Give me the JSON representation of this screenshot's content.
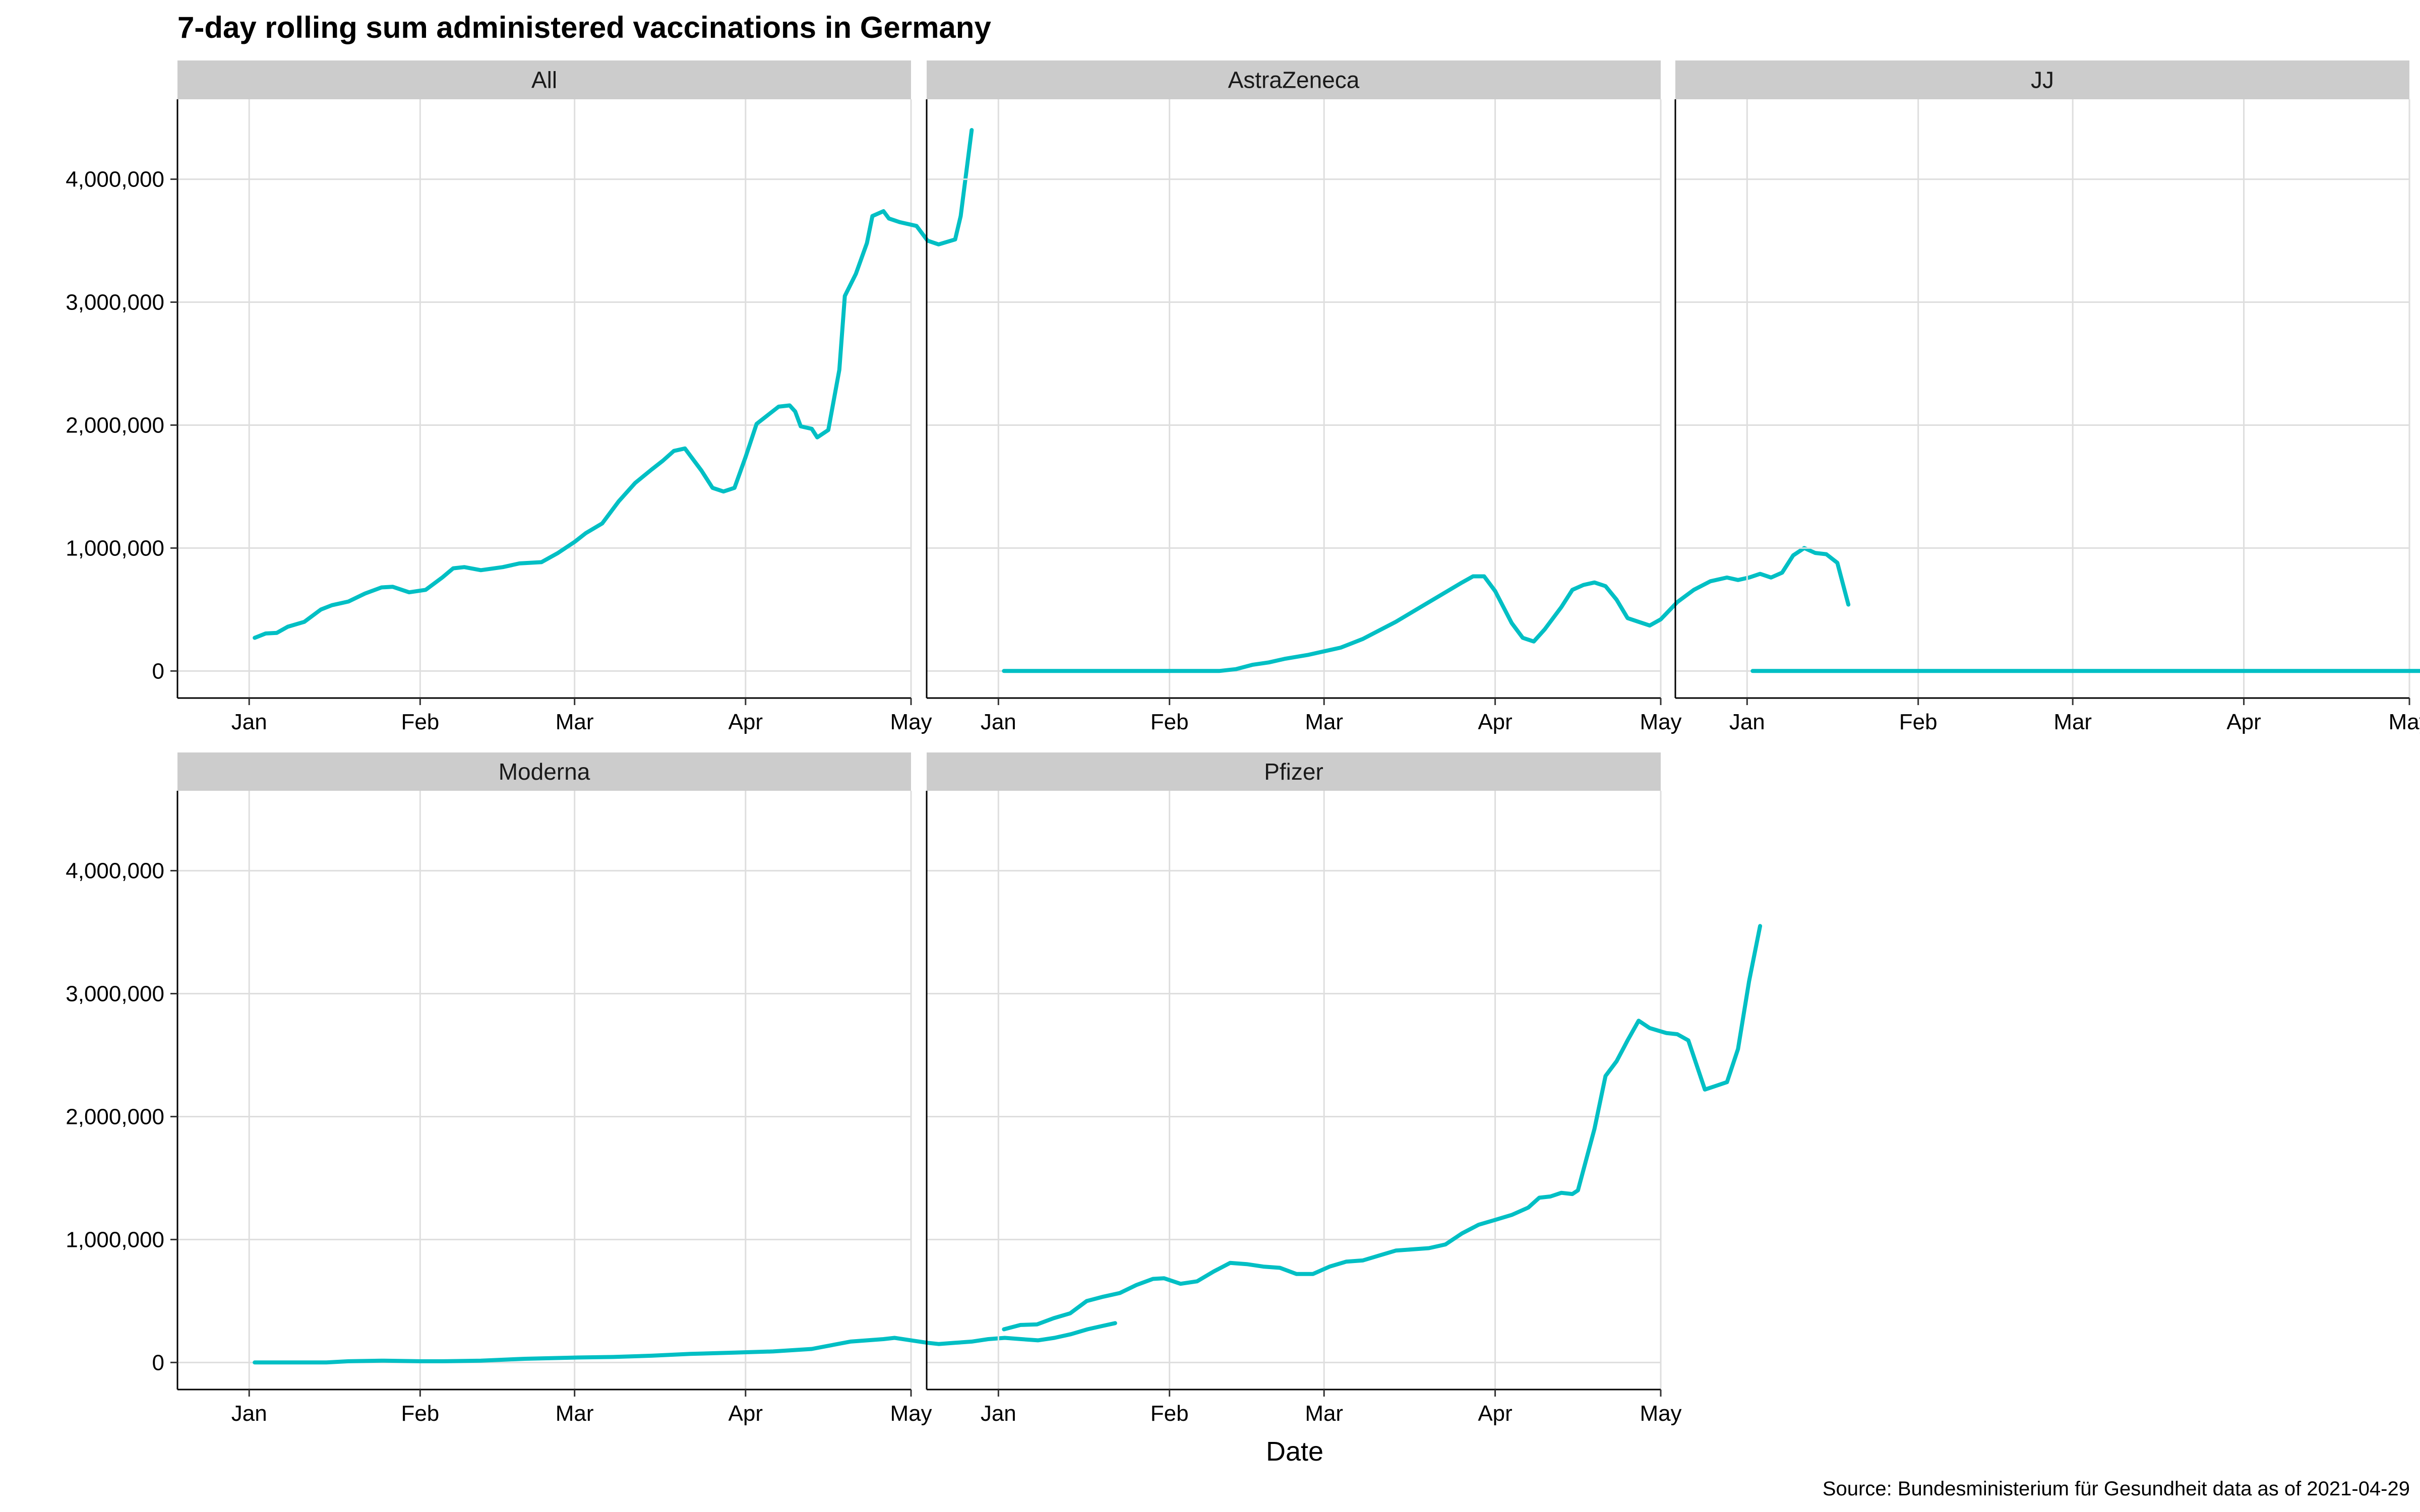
{
  "chart_data": {
    "type": "line",
    "title": "7-day rolling sum administered vaccinations in Germany",
    "xlabel": "Date",
    "ylabel": "",
    "caption": "Source: Bundesministerium für Gesundheit data as of 2021-04-29",
    "x_ticks": [
      "Jan",
      "Feb",
      "Mar",
      "Apr",
      "May"
    ],
    "x_tick_dates": [
      "2021-01-01",
      "2021-02-01",
      "2021-03-01",
      "2021-04-01",
      "2021-05-01"
    ],
    "xlim": [
      "2020-12-19",
      "2021-05-01"
    ],
    "y_ticks": [
      "0",
      "1,000,000",
      "2,000,000",
      "3,000,000",
      "4,000,000"
    ],
    "y_tick_values": [
      0,
      1000000,
      2000000,
      3000000,
      4000000
    ],
    "ylim": [
      -220000,
      4650000
    ],
    "grid": true,
    "line_color": "#00BFC4",
    "strip_color": "#CCCCCC",
    "grid_color": "#DEDEDE",
    "layout": "facet-wrap 3 columns, shared y scale",
    "facets": [
      {
        "name": "All",
        "points": [
          [
            "2021-01-02",
            270000
          ],
          [
            "2021-01-04",
            305000
          ],
          [
            "2021-01-06",
            310000
          ],
          [
            "2021-01-08",
            360000
          ],
          [
            "2021-01-11",
            400000
          ],
          [
            "2021-01-14",
            500000
          ],
          [
            "2021-01-16",
            535000
          ],
          [
            "2021-01-19",
            565000
          ],
          [
            "2021-01-22",
            630000
          ],
          [
            "2021-01-25",
            680000
          ],
          [
            "2021-01-27",
            685000
          ],
          [
            "2021-01-30",
            640000
          ],
          [
            "2021-02-02",
            660000
          ],
          [
            "2021-02-05",
            760000
          ],
          [
            "2021-02-07",
            835000
          ],
          [
            "2021-02-09",
            845000
          ],
          [
            "2021-02-12",
            820000
          ],
          [
            "2021-02-16",
            845000
          ],
          [
            "2021-02-19",
            875000
          ],
          [
            "2021-02-23",
            885000
          ],
          [
            "2021-02-26",
            960000
          ],
          [
            "2021-03-01",
            1050000
          ],
          [
            "2021-03-03",
            1120000
          ],
          [
            "2021-03-06",
            1200000
          ],
          [
            "2021-03-09",
            1380000
          ],
          [
            "2021-03-12",
            1530000
          ],
          [
            "2021-03-15",
            1640000
          ],
          [
            "2021-03-17",
            1710000
          ],
          [
            "2021-03-19",
            1790000
          ],
          [
            "2021-03-21",
            1810000
          ],
          [
            "2021-03-24",
            1630000
          ],
          [
            "2021-03-26",
            1490000
          ],
          [
            "2021-03-28",
            1460000
          ],
          [
            "2021-03-30",
            1490000
          ],
          [
            "2021-04-01",
            1740000
          ],
          [
            "2021-04-03",
            2010000
          ],
          [
            "2021-04-05",
            2080000
          ],
          [
            "2021-04-07",
            2150000
          ],
          [
            "2021-04-09",
            2160000
          ],
          [
            "2021-04-10",
            2110000
          ],
          [
            "2021-04-11",
            1990000
          ],
          [
            "2021-04-13",
            1970000
          ],
          [
            "2021-04-14",
            1900000
          ],
          [
            "2021-04-16",
            1960000
          ],
          [
            "2021-04-18",
            2450000
          ],
          [
            "2021-04-19",
            3050000
          ],
          [
            "2021-04-21",
            3230000
          ],
          [
            "2021-04-23",
            3480000
          ],
          [
            "2021-04-24",
            3700000
          ],
          [
            "2021-04-26",
            3740000
          ],
          [
            "2021-04-27",
            3680000
          ],
          [
            "2021-04-29",
            3650000
          ],
          [
            "2021-05-02",
            3620000
          ],
          [
            "2021-05-04",
            3500000
          ],
          [
            "2021-05-06",
            3470000
          ],
          [
            "2021-05-09",
            3510000
          ],
          [
            "2021-05-10",
            3700000
          ],
          [
            "2021-05-12",
            4400000
          ]
        ]
      },
      {
        "name": "AstraZeneca",
        "points": [
          [
            "2021-01-02",
            0
          ],
          [
            "2021-01-15",
            0
          ],
          [
            "2021-02-01",
            0
          ],
          [
            "2021-02-07",
            0
          ],
          [
            "2021-02-10",
            0
          ],
          [
            "2021-02-13",
            15000
          ],
          [
            "2021-02-16",
            50000
          ],
          [
            "2021-02-19",
            70000
          ],
          [
            "2021-02-22",
            100000
          ],
          [
            "2021-02-26",
            130000
          ],
          [
            "2021-03-01",
            160000
          ],
          [
            "2021-03-04",
            190000
          ],
          [
            "2021-03-08",
            260000
          ],
          [
            "2021-03-11",
            330000
          ],
          [
            "2021-03-14",
            400000
          ],
          [
            "2021-03-17",
            480000
          ],
          [
            "2021-03-20",
            560000
          ],
          [
            "2021-03-23",
            640000
          ],
          [
            "2021-03-26",
            720000
          ],
          [
            "2021-03-28",
            770000
          ],
          [
            "2021-03-30",
            770000
          ],
          [
            "2021-04-01",
            650000
          ],
          [
            "2021-04-04",
            390000
          ],
          [
            "2021-04-06",
            270000
          ],
          [
            "2021-04-08",
            240000
          ],
          [
            "2021-04-10",
            340000
          ],
          [
            "2021-04-13",
            520000
          ],
          [
            "2021-04-15",
            660000
          ],
          [
            "2021-04-17",
            700000
          ],
          [
            "2021-04-19",
            720000
          ],
          [
            "2021-04-21",
            690000
          ],
          [
            "2021-04-23",
            580000
          ],
          [
            "2021-04-25",
            430000
          ],
          [
            "2021-04-27",
            400000
          ],
          [
            "2021-04-29",
            370000
          ],
          [
            "2021-05-01",
            420000
          ],
          [
            "2021-05-04",
            560000
          ],
          [
            "2021-05-07",
            660000
          ],
          [
            "2021-05-10",
            730000
          ],
          [
            "2021-05-13",
            760000
          ],
          [
            "2021-05-15",
            740000
          ],
          [
            "2021-05-17",
            760000
          ],
          [
            "2021-05-19",
            790000
          ],
          [
            "2021-05-21",
            760000
          ],
          [
            "2021-05-23",
            800000
          ],
          [
            "2021-05-25",
            940000
          ],
          [
            "2021-05-27",
            1000000
          ],
          [
            "2021-05-29",
            960000
          ],
          [
            "2021-05-31",
            950000
          ],
          [
            "2021-06-02",
            880000
          ],
          [
            "2021-06-04",
            540000
          ]
        ]
      },
      {
        "name": "JJ",
        "points": [
          [
            "2021-01-02",
            0
          ],
          [
            "2021-03-01",
            0
          ],
          [
            "2021-05-10",
            0
          ],
          [
            "2021-06-03",
            0
          ]
        ]
      },
      {
        "name": "Moderna",
        "points": [
          [
            "2021-01-02",
            0
          ],
          [
            "2021-01-10",
            0
          ],
          [
            "2021-01-15",
            0
          ],
          [
            "2021-01-19",
            10000
          ],
          [
            "2021-01-25",
            15000
          ],
          [
            "2021-02-01",
            10000
          ],
          [
            "2021-02-05",
            10000
          ],
          [
            "2021-02-12",
            15000
          ],
          [
            "2021-02-20",
            30000
          ],
          [
            "2021-03-01",
            40000
          ],
          [
            "2021-03-08",
            45000
          ],
          [
            "2021-03-15",
            55000
          ],
          [
            "2021-03-22",
            70000
          ],
          [
            "2021-03-30",
            80000
          ],
          [
            "2021-04-06",
            90000
          ],
          [
            "2021-04-13",
            110000
          ],
          [
            "2021-04-20",
            170000
          ],
          [
            "2021-04-26",
            190000
          ],
          [
            "2021-04-28",
            200000
          ],
          [
            "2021-05-01",
            180000
          ],
          [
            "2021-05-04",
            160000
          ],
          [
            "2021-05-06",
            150000
          ],
          [
            "2021-05-09",
            160000
          ],
          [
            "2021-05-12",
            170000
          ],
          [
            "2021-05-15",
            190000
          ],
          [
            "2021-05-18",
            200000
          ],
          [
            "2021-05-21",
            190000
          ],
          [
            "2021-05-24",
            180000
          ],
          [
            "2021-05-27",
            200000
          ],
          [
            "2021-05-30",
            230000
          ],
          [
            "2021-06-02",
            270000
          ],
          [
            "2021-06-05",
            300000
          ],
          [
            "2021-06-07",
            320000
          ]
        ]
      },
      {
        "name": "Pfizer",
        "points": [
          [
            "2021-01-02",
            270000
          ],
          [
            "2021-01-05",
            305000
          ],
          [
            "2021-01-08",
            310000
          ],
          [
            "2021-01-11",
            360000
          ],
          [
            "2021-01-14",
            400000
          ],
          [
            "2021-01-17",
            500000
          ],
          [
            "2021-01-20",
            535000
          ],
          [
            "2021-01-23",
            565000
          ],
          [
            "2021-01-26",
            630000
          ],
          [
            "2021-01-29",
            680000
          ],
          [
            "2021-01-31",
            685000
          ],
          [
            "2021-02-03",
            640000
          ],
          [
            "2021-02-06",
            660000
          ],
          [
            "2021-02-09",
            740000
          ],
          [
            "2021-02-12",
            810000
          ],
          [
            "2021-02-15",
            800000
          ],
          [
            "2021-02-18",
            780000
          ],
          [
            "2021-02-21",
            770000
          ],
          [
            "2021-02-24",
            720000
          ],
          [
            "2021-02-27",
            720000
          ],
          [
            "2021-03-02",
            780000
          ],
          [
            "2021-03-05",
            820000
          ],
          [
            "2021-03-08",
            830000
          ],
          [
            "2021-03-11",
            870000
          ],
          [
            "2021-03-14",
            910000
          ],
          [
            "2021-03-17",
            920000
          ],
          [
            "2021-03-20",
            930000
          ],
          [
            "2021-03-23",
            960000
          ],
          [
            "2021-03-26",
            1050000
          ],
          [
            "2021-03-29",
            1120000
          ],
          [
            "2021-04-01",
            1160000
          ],
          [
            "2021-04-04",
            1200000
          ],
          [
            "2021-04-07",
            1260000
          ],
          [
            "2021-04-09",
            1340000
          ],
          [
            "2021-04-11",
            1350000
          ],
          [
            "2021-04-13",
            1380000
          ],
          [
            "2021-04-15",
            1370000
          ],
          [
            "2021-04-16",
            1400000
          ],
          [
            "2021-04-19",
            1900000
          ],
          [
            "2021-04-21",
            2330000
          ],
          [
            "2021-04-23",
            2450000
          ],
          [
            "2021-04-25",
            2620000
          ],
          [
            "2021-04-27",
            2780000
          ],
          [
            "2021-04-29",
            2720000
          ],
          [
            "2021-05-02",
            2680000
          ],
          [
            "2021-05-04",
            2670000
          ],
          [
            "2021-05-06",
            2620000
          ],
          [
            "2021-05-09",
            2220000
          ],
          [
            "2021-05-11",
            2250000
          ],
          [
            "2021-05-13",
            2280000
          ],
          [
            "2021-05-15",
            2550000
          ],
          [
            "2021-05-17",
            3100000
          ],
          [
            "2021-05-19",
            3550000
          ]
        ]
      }
    ]
  }
}
